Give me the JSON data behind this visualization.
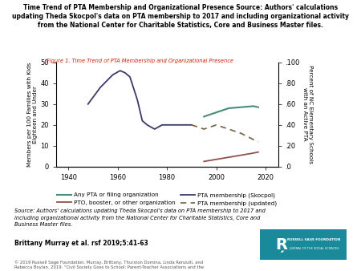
{
  "title_bold": "Time Trend of PTA Membership and Organizational Presence Source: Authors' calculations\nupdating Theda Skocpol's data on PTA membership to 2017 and including organizational activity\nfrom the National Center for Charitable Statistics, Core and Business Master files.",
  "figure_label": "Figure 1. Time Trend of PTA Membership and Organizational Presence",
  "ylabel_left": "Members per 100 Families with Kids\nEighteen and Under",
  "ylabel_right": "Percent of NC Elementary Schools\nwith an Active PTA",
  "ylim_left": [
    0,
    50
  ],
  "ylim_right": [
    0,
    100
  ],
  "xlim": [
    1935,
    2025
  ],
  "xticks": [
    1940,
    1960,
    1980,
    2000,
    2020
  ],
  "yticks_left": [
    0,
    10,
    20,
    30,
    40,
    50
  ],
  "yticks_right": [
    0,
    20,
    40,
    60,
    80,
    100
  ],
  "ytick_right_labels": [
    ".0",
    ".20",
    ".40",
    ".60",
    ".80",
    ".100"
  ],
  "pta_membership_skocpol_x": [
    1948,
    1953,
    1958,
    1961,
    1963,
    1965,
    1968,
    1970,
    1972,
    1975,
    1978,
    1980,
    1982,
    1985,
    1988,
    1990
  ],
  "pta_membership_skocpol_y": [
    30,
    38,
    44,
    46,
    45,
    43,
    32,
    22,
    20,
    18,
    20,
    20,
    20,
    20,
    20,
    20
  ],
  "pta_membership_updated_x": [
    1990,
    1995,
    2000,
    2005,
    2010,
    2015,
    2017
  ],
  "pta_membership_updated_y": [
    20,
    18,
    20,
    18,
    16,
    13,
    12
  ],
  "any_pta_filing_x": [
    1995,
    2000,
    2005,
    2010,
    2015,
    2017
  ],
  "any_pta_filing_y": [
    24,
    26,
    28,
    28.5,
    29,
    28.5
  ],
  "pto_booster_x": [
    1995,
    2000,
    2005,
    2010,
    2015,
    2017
  ],
  "pto_booster_y": [
    2.5,
    3.5,
    4.5,
    5.5,
    6.5,
    7
  ],
  "color_pta_skocpol": "#3a3a6a",
  "color_pta_updated": "#7a6a4a",
  "color_any_pta": "#4a8a7a",
  "color_pto": "#905050",
  "legend_labels": [
    "Any PTA or filing organization",
    "PTO, booster, or other organization",
    "PTA membership (Skocpol)",
    "PTA membership (updated)"
  ],
  "source_text": "Source: Authors' calculations updating Theda Skocpol's data on PTA membership to 2017 and\nincluding organizational activity from the National Center for Charitable Statistics, Core and\nBusiness Master files.",
  "citation_text": "Brittany Murray et al. rsf 2019;5:41-63",
  "copyright_text": "© 2019 Russell Sage Foundation. Murray, Brittany, Thurston Domina, Linda Renzulli, and\nRebecca Boylan. 2019. “Civil Society Goes to School: Parent-Teacher Associations and the"
}
